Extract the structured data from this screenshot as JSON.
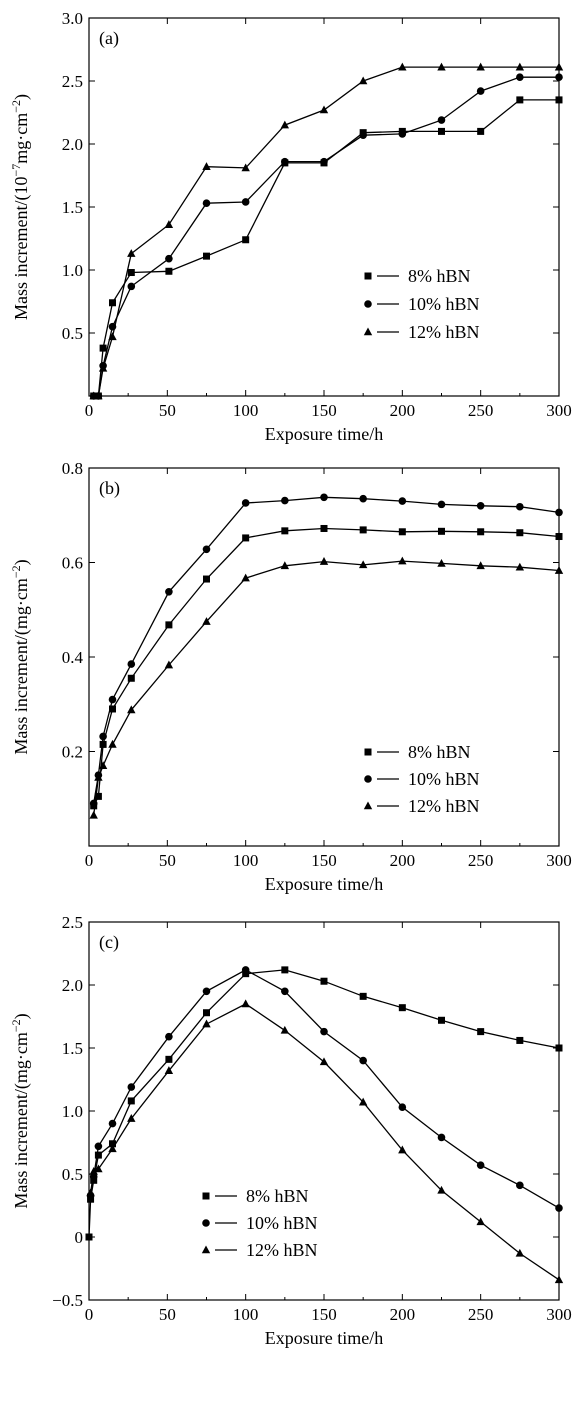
{
  "chart_data": [
    {
      "type": "line",
      "panel_label": "(a)",
      "xlabel": "Exposure time/h",
      "ylabel_main": "Mass increment/(10",
      "ylabel_exp": "−7",
      "ylabel_unit": "mg·cm",
      "ylabel_unit_exp": "−2",
      "ylabel_close": ")",
      "xlim": [
        0,
        300
      ],
      "ylim": [
        0,
        3.0
      ],
      "xticks": [
        0,
        50,
        100,
        150,
        200,
        250,
        300
      ],
      "xtick_labels": [
        "0",
        "50",
        "100",
        "150",
        "200",
        "250",
        "300"
      ],
      "yticks": [
        0.5,
        1.0,
        1.5,
        2.0,
        2.5,
        3.0
      ],
      "ytick_labels": [
        "0.5",
        "1.0",
        "1.5",
        "2.0",
        "2.5",
        "3.0"
      ],
      "legend_position": "center-right",
      "series": [
        {
          "name": "8% hBN",
          "marker": "square",
          "x": [
            3,
            6,
            9,
            15,
            27,
            51,
            75,
            100,
            125,
            150,
            175,
            200,
            225,
            250,
            275,
            300
          ],
          "y": [
            0,
            0,
            0.38,
            0.74,
            0.98,
            0.99,
            1.11,
            1.24,
            1.85,
            1.85,
            2.09,
            2.1,
            2.1,
            2.1,
            2.35,
            2.35
          ]
        },
        {
          "name": "10% hBN",
          "marker": "circle",
          "x": [
            3,
            6,
            9,
            15,
            27,
            51,
            75,
            100,
            125,
            150,
            175,
            200,
            225,
            250,
            275,
            300
          ],
          "y": [
            0,
            0,
            0.24,
            0.55,
            0.87,
            1.09,
            1.53,
            1.54,
            1.86,
            1.86,
            2.07,
            2.08,
            2.19,
            2.42,
            2.53,
            2.53
          ]
        },
        {
          "name": "12% hBN",
          "marker": "triangle",
          "x": [
            3,
            6,
            9,
            15,
            27,
            51,
            75,
            100,
            125,
            150,
            175,
            200,
            225,
            250,
            275,
            300
          ],
          "y": [
            0,
            0,
            0.22,
            0.47,
            1.13,
            1.36,
            1.82,
            1.81,
            2.15,
            2.27,
            2.5,
            2.61,
            2.61,
            2.61,
            2.61,
            2.61
          ]
        }
      ]
    },
    {
      "type": "line",
      "panel_label": "(b)",
      "xlabel": "Exposure time/h",
      "ylabel_main": "Mass increment/(mg·cm",
      "ylabel_exp": "−2",
      "ylabel_close": ")",
      "xlim": [
        0,
        300
      ],
      "ylim": [
        0,
        0.8
      ],
      "xticks": [
        0,
        50,
        100,
        150,
        200,
        250,
        300
      ],
      "xtick_labels": [
        "0",
        "50",
        "100",
        "150",
        "200",
        "250",
        "300"
      ],
      "yticks": [
        0.2,
        0.4,
        0.6,
        0.8
      ],
      "ytick_labels": [
        "0.2",
        "0.4",
        "0.6",
        "0.8"
      ],
      "legend_position": "bottom-right",
      "series": [
        {
          "name": "8% hBN",
          "marker": "square",
          "x": [
            3,
            6,
            9,
            15,
            27,
            51,
            75,
            100,
            125,
            150,
            175,
            200,
            225,
            250,
            275,
            300
          ],
          "y": [
            0.085,
            0.105,
            0.215,
            0.29,
            0.355,
            0.468,
            0.565,
            0.652,
            0.667,
            0.672,
            0.669,
            0.665,
            0.666,
            0.665,
            0.663,
            0.655
          ]
        },
        {
          "name": "10% hBN",
          "marker": "circle",
          "x": [
            3,
            6,
            9,
            15,
            27,
            51,
            75,
            100,
            125,
            150,
            175,
            200,
            225,
            250,
            275,
            300
          ],
          "y": [
            0.09,
            0.15,
            0.232,
            0.31,
            0.385,
            0.538,
            0.628,
            0.726,
            0.731,
            0.738,
            0.735,
            0.73,
            0.723,
            0.72,
            0.718,
            0.706
          ]
        },
        {
          "name": "12% hBN",
          "marker": "triangle",
          "x": [
            3,
            6,
            9,
            15,
            27,
            51,
            75,
            100,
            125,
            150,
            175,
            200,
            225,
            250,
            275,
            300
          ],
          "y": [
            0.065,
            0.145,
            0.17,
            0.215,
            0.288,
            0.383,
            0.475,
            0.567,
            0.593,
            0.602,
            0.595,
            0.603,
            0.598,
            0.593,
            0.59,
            0.583
          ]
        }
      ]
    },
    {
      "type": "line",
      "panel_label": "(c)",
      "xlabel": "Exposure time/h",
      "ylabel_main": "Mass increment/(mg·cm",
      "ylabel_exp": "−2",
      "ylabel_close": ")",
      "xlim": [
        0,
        300
      ],
      "ylim": [
        -0.5,
        2.5
      ],
      "xticks": [
        0,
        50,
        100,
        150,
        200,
        250,
        300
      ],
      "xtick_labels": [
        "0",
        "50",
        "100",
        "150",
        "200",
        "250",
        "300"
      ],
      "yticks": [
        -0.5,
        0,
        0.5,
        1.0,
        1.5,
        2.0,
        2.5
      ],
      "ytick_labels": [
        "−0.5",
        "0",
        "0.5",
        "1.0",
        "1.5",
        "2.0",
        "2.5"
      ],
      "legend_position": "bottom-left",
      "series": [
        {
          "name": "8% hBN",
          "marker": "square",
          "x": [
            0,
            1,
            3,
            6,
            15,
            27,
            51,
            75,
            100,
            125,
            150,
            175,
            200,
            225,
            250,
            275,
            300
          ],
          "y": [
            0,
            0.3,
            0.45,
            0.65,
            0.74,
            1.08,
            1.41,
            1.78,
            2.09,
            2.12,
            2.03,
            1.91,
            1.82,
            1.72,
            1.63,
            1.56,
            1.5
          ]
        },
        {
          "name": "10% hBN",
          "marker": "circle",
          "x": [
            1,
            3,
            6,
            15,
            27,
            51,
            75,
            100,
            125,
            150,
            175,
            200,
            225,
            250,
            275,
            300
          ],
          "y": [
            0.33,
            0.48,
            0.72,
            0.9,
            1.19,
            1.59,
            1.95,
            2.12,
            1.95,
            1.63,
            1.4,
            1.03,
            0.79,
            0.57,
            0.41,
            0.23
          ]
        },
        {
          "name": "12% hBN",
          "marker": "triangle",
          "x": [
            1,
            3,
            6,
            15,
            27,
            51,
            75,
            100,
            125,
            150,
            175,
            200,
            225,
            250,
            275,
            300
          ],
          "y": [
            0.35,
            0.52,
            0.54,
            0.7,
            0.94,
            1.32,
            1.69,
            1.85,
            1.64,
            1.39,
            1.07,
            0.69,
            0.37,
            0.12,
            -0.13,
            -0.34
          ]
        }
      ]
    }
  ]
}
